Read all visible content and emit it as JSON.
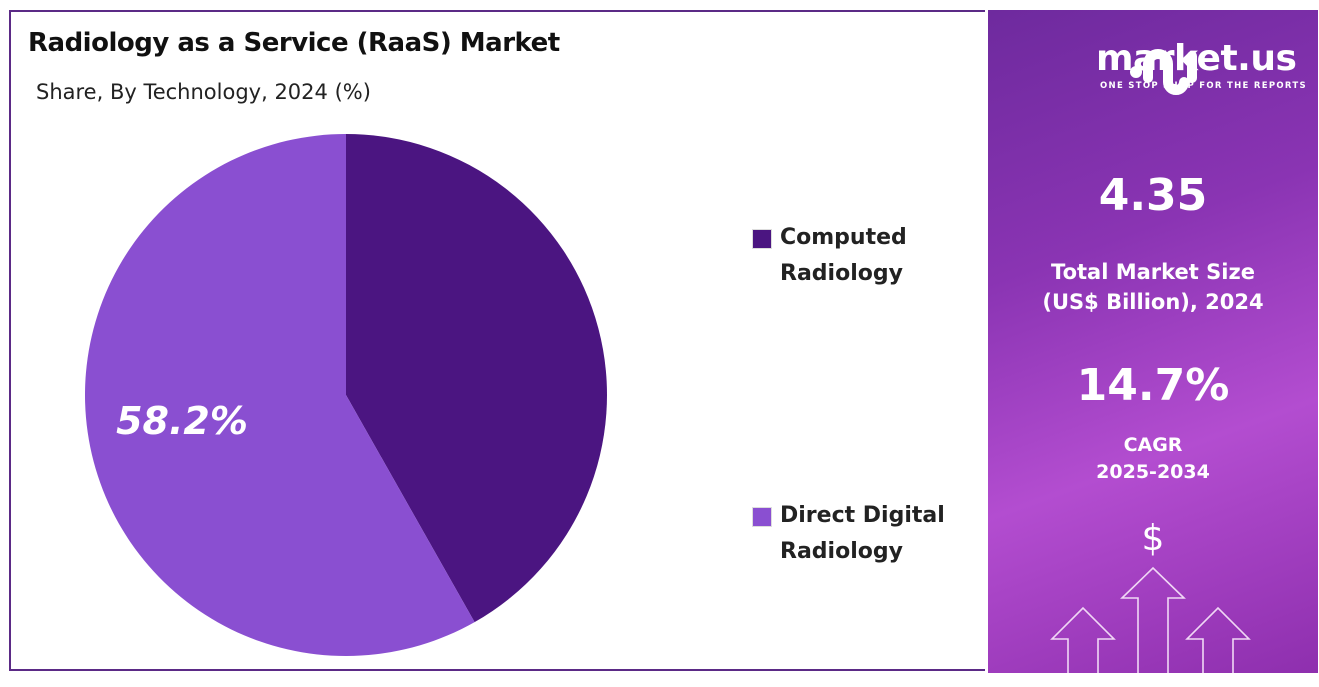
{
  "header": {
    "title": "Radiology as a Service (RaaS) Market",
    "subtitle": "Share, By Technology, 2024 (%)"
  },
  "chart_data": {
    "type": "pie",
    "title": "Radiology as a Service (RaaS) Market",
    "subtitle": "Share, By Technology, 2024 (%)",
    "categories": [
      "Computed Radiology",
      "Direct Digital Radiology"
    ],
    "values": [
      41.8,
      58.2
    ],
    "colors": [
      "#4b1581",
      "#8a4fd1"
    ],
    "data_labels": [
      "",
      "58.2%"
    ],
    "legend_placement": "right"
  },
  "legend": [
    {
      "label": "Computed Radiology",
      "color": "#4b1581"
    },
    {
      "label": "Direct Digital Radiology",
      "color": "#8a4fd1"
    }
  ],
  "sidebar": {
    "logo_text": "market.us",
    "logo_tagline": "ONE STOP SHOP FOR THE REPORTS",
    "market_size": "4.35",
    "market_size_label_1": "Total Market Size",
    "market_size_label_2": "(US$ Billion), 2024",
    "cagr": "14.7%",
    "cagr_label_1": "CAGR",
    "cagr_label_2": "2025-2034",
    "currency_symbol": "$",
    "icons": [
      "logo-icon",
      "dollar-icon",
      "arrow-up-icon"
    ]
  }
}
